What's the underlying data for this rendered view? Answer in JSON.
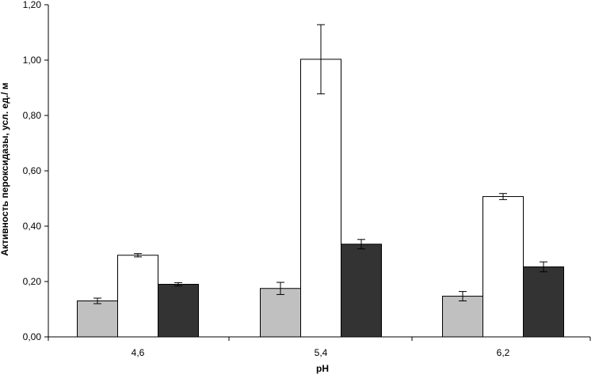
{
  "chart_data": {
    "type": "bar",
    "xlabel": "pH",
    "ylabel": "Активность пероксидазы, усл. ед./ м",
    "categories": [
      "4,6",
      "5,4",
      "6,2"
    ],
    "ylim": [
      0,
      1.2
    ],
    "yticks": [
      "0,00",
      "0,20",
      "0,40",
      "0,60",
      "0,80",
      "1,00",
      "1,20"
    ],
    "ytick_values": [
      0,
      0.2,
      0.4,
      0.6,
      0.8,
      1.0,
      1.2
    ],
    "grid": false,
    "legend": "none",
    "series": [
      {
        "values": [
          0.13,
          0.175,
          0.147
        ],
        "errors": [
          0.01,
          0.022,
          0.017
        ],
        "color": "#c0c0c0"
      },
      {
        "values": [
          0.295,
          1.003,
          0.507
        ],
        "errors": [
          0.006,
          0.125,
          0.011
        ],
        "color": "#ffffff"
      },
      {
        "values": [
          0.19,
          0.335,
          0.253
        ],
        "errors": [
          0.006,
          0.017,
          0.018
        ],
        "color": "#333333"
      }
    ]
  }
}
